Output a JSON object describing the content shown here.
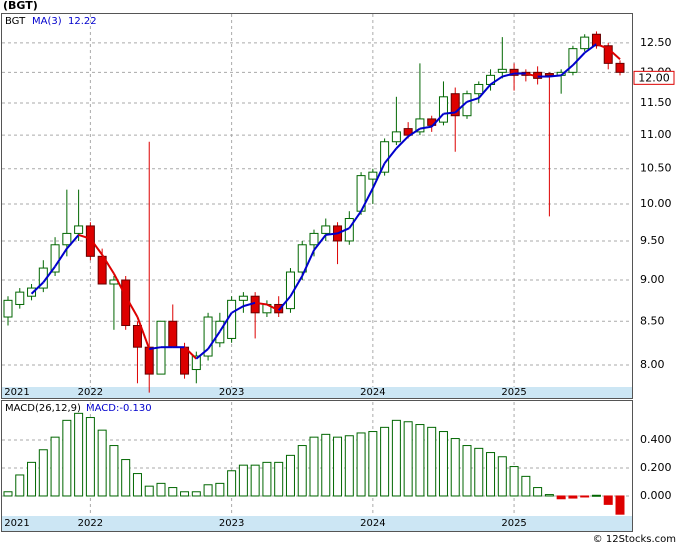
{
  "chart_data": [
    {
      "type": "candlestick",
      "title": "(BGT)",
      "legend": "BGT",
      "log_scale": true,
      "grid": true,
      "up_color": "#006600",
      "down_color": "#dd0000",
      "categories": [
        "2021",
        null,
        null,
        null,
        null,
        null,
        null,
        "2022",
        null,
        null,
        null,
        null,
        null,
        null,
        null,
        null,
        null,
        null,
        null,
        "2023",
        null,
        null,
        null,
        null,
        null,
        null,
        null,
        null,
        null,
        null,
        null,
        "2024",
        null,
        null,
        null,
        null,
        null,
        null,
        null,
        null,
        null,
        null,
        null,
        "2025",
        null,
        null,
        null,
        null,
        null,
        null,
        null,
        null,
        null
      ],
      "open": [
        8.55,
        8.7,
        8.8,
        8.9,
        9.1,
        9.45,
        9.6,
        9.7,
        9.3,
        8.95,
        9.0,
        8.45,
        8.2,
        7.9,
        8.5,
        8.2,
        7.95,
        8.1,
        8.25,
        8.3,
        8.75,
        8.8,
        8.6,
        8.7,
        8.65,
        9.1,
        9.45,
        9.6,
        9.7,
        9.5,
        9.9,
        10.35,
        10.45,
        10.9,
        11.1,
        11.05,
        11.25,
        11.2,
        11.65,
        11.3,
        11.65,
        11.8,
        12.0,
        12.05,
        12.0,
        12.0,
        11.98,
        11.95,
        12.0,
        12.4,
        12.65,
        12.45,
        12.15
      ],
      "high": [
        8.8,
        8.9,
        8.95,
        9.25,
        9.55,
        10.2,
        10.2,
        9.75,
        9.4,
        9.05,
        9.05,
        8.5,
        10.9,
        8.5,
        8.7,
        8.25,
        8.15,
        8.6,
        8.6,
        8.8,
        8.85,
        8.85,
        8.75,
        8.8,
        9.15,
        9.5,
        9.65,
        9.8,
        9.75,
        9.9,
        10.45,
        10.5,
        10.95,
        11.6,
        11.2,
        12.15,
        11.3,
        11.85,
        11.75,
        11.7,
        11.85,
        12.05,
        12.6,
        12.15,
        12.05,
        12.1,
        12.0,
        12.05,
        12.45,
        12.65,
        12.7,
        12.5,
        12.2
      ],
      "low": [
        8.45,
        8.65,
        8.75,
        8.85,
        9.05,
        9.3,
        9.5,
        9.25,
        8.95,
        8.4,
        8.4,
        7.8,
        7.7,
        7.9,
        8.2,
        7.85,
        7.8,
        8.05,
        8.2,
        8.25,
        8.6,
        8.3,
        8.55,
        8.55,
        8.6,
        9.0,
        9.3,
        9.5,
        9.2,
        9.45,
        9.85,
        10.0,
        10.4,
        10.85,
        10.95,
        11.0,
        11.05,
        11.15,
        10.75,
        11.25,
        11.5,
        11.7,
        11.9,
        11.7,
        11.85,
        11.8,
        9.83,
        11.65,
        11.95,
        12.35,
        12.4,
        12.05,
        11.95
      ],
      "close": [
        8.75,
        8.85,
        8.9,
        9.15,
        9.45,
        9.6,
        9.7,
        9.3,
        8.95,
        9.0,
        8.45,
        8.2,
        7.9,
        8.5,
        8.2,
        7.9,
        8.1,
        8.55,
        8.5,
        8.75,
        8.8,
        8.6,
        8.7,
        8.6,
        9.1,
        9.45,
        9.6,
        9.7,
        9.5,
        9.8,
        10.4,
        10.45,
        10.9,
        11.05,
        11.0,
        11.25,
        11.15,
        11.6,
        11.3,
        11.65,
        11.8,
        11.95,
        12.05,
        11.95,
        11.95,
        11.9,
        11.95,
        12.0,
        12.4,
        12.6,
        12.45,
        12.15,
        12.0
      ],
      "ma": {
        "name": "MA(3)",
        "value_label": "12.22",
        "up_color": "#0000cc",
        "down_color": "#dd0000",
        "values": [
          null,
          null,
          8.83,
          8.97,
          9.17,
          9.4,
          9.58,
          9.53,
          9.32,
          9.08,
          8.8,
          8.55,
          8.18,
          8.2,
          8.2,
          8.2,
          8.07,
          8.18,
          8.38,
          8.6,
          8.68,
          8.72,
          8.7,
          8.63,
          8.8,
          9.05,
          9.38,
          9.58,
          9.6,
          9.67,
          9.9,
          10.22,
          10.58,
          10.8,
          10.98,
          11.1,
          11.13,
          11.33,
          11.35,
          11.52,
          11.58,
          11.8,
          11.93,
          11.98,
          11.98,
          11.93,
          11.93,
          11.95,
          12.12,
          12.33,
          12.48,
          12.4,
          12.22
        ]
      },
      "price_tag": {
        "value": 12.0,
        "label": "12.00"
      },
      "ylim": [
        7.76,
        13.01
      ],
      "yticks": [
        {
          "value": 8,
          "label": "8.00"
        },
        {
          "value": 8.5,
          "label": "8.50"
        },
        {
          "value": 9,
          "label": "9.00"
        },
        {
          "value": 9.5,
          "label": "9.50"
        },
        {
          "value": 10,
          "label": "10.00"
        },
        {
          "value": 10.5,
          "label": "10.50"
        },
        {
          "value": 11,
          "label": "11.00"
        },
        {
          "value": 11.5,
          "label": "11.50"
        },
        {
          "value": 12,
          "label": "12.00"
        },
        {
          "value": 12.5,
          "label": "12.50"
        }
      ]
    },
    {
      "type": "bar",
      "title": "MACD(26,12,9)",
      "legend": "MACD:-0.130",
      "grid": true,
      "up_color": "#006600",
      "down_color": "#dd0000",
      "categories": [
        "2021",
        null,
        null,
        null,
        null,
        null,
        null,
        "2022",
        null,
        null,
        null,
        null,
        null,
        null,
        null,
        null,
        null,
        null,
        null,
        "2023",
        null,
        null,
        null,
        null,
        null,
        null,
        null,
        null,
        null,
        null,
        null,
        "2024",
        null,
        null,
        null,
        null,
        null,
        null,
        null,
        null,
        null,
        null,
        null,
        "2025",
        null,
        null,
        null,
        null,
        null,
        null,
        null,
        null,
        null
      ],
      "values": [
        0.03,
        0.15,
        0.24,
        0.33,
        0.42,
        0.54,
        0.59,
        0.56,
        0.47,
        0.36,
        0.26,
        0.16,
        0.07,
        0.09,
        0.06,
        0.03,
        0.03,
        0.08,
        0.09,
        0.18,
        0.22,
        0.22,
        0.24,
        0.24,
        0.29,
        0.36,
        0.42,
        0.44,
        0.42,
        0.43,
        0.45,
        0.46,
        0.49,
        0.54,
        0.53,
        0.51,
        0.49,
        0.46,
        0.41,
        0.36,
        0.34,
        0.31,
        0.28,
        0.21,
        0.14,
        0.06,
        0.01,
        -0.02,
        -0.015,
        -0.005,
        0.005,
        -0.06,
        -0.13
      ],
      "ylim": [
        -0.143,
        0.671
      ],
      "yticks": [
        {
          "value": 0,
          "label": "0.000"
        },
        {
          "value": 0.2,
          "label": "0.200"
        },
        {
          "value": 0.4,
          "label": "0.400"
        }
      ]
    }
  ],
  "watermark": "© 12Stocks.com"
}
